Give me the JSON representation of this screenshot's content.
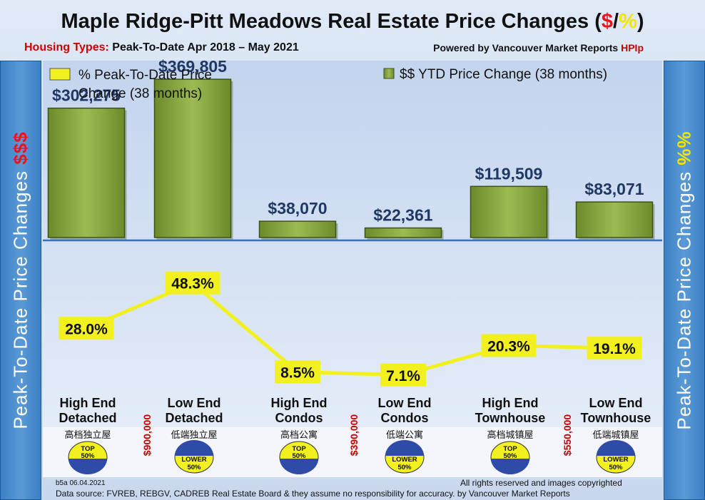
{
  "header": {
    "title_main": "Maple Ridge-Pitt Meadows Real Estate Price Changes (",
    "title_dollar": "$",
    "title_slash": "/",
    "title_pct": "%",
    "title_end": ")",
    "subtitle_label": "Housing Types:",
    "subtitle_value": "Peak-To-Date Apr 2018 – May 2021",
    "powered_by": "Powered by Vancouver Market Reports",
    "powered_hp": "HPIp"
  },
  "sidebar_left": {
    "text": "Peak-To-Date Price Changes",
    "accent": "$$$"
  },
  "sidebar_right": {
    "text": "Peak-To-Date  Price  Changes",
    "accent": "%%"
  },
  "legend": {
    "pct_line1": "% Peak-To-Date Price",
    "pct_line2": "Change (38 months)",
    "dollar": "$$ YTD Price Change (38 months)"
  },
  "categories": [
    {
      "en1": "High End",
      "en2": "Detached",
      "cn": "高档独立屋",
      "badge_top": "TOP",
      "badge_bottom": "50%"
    },
    {
      "en1": "Low End",
      "en2": "Detached",
      "cn": "低端独立屋",
      "badge_top": "LOWER",
      "badge_bottom": "50%"
    },
    {
      "en1": "High End",
      "en2": "Condos",
      "cn": "高档公寓",
      "badge_top": "TOP",
      "badge_bottom": "50%"
    },
    {
      "en1": "Low End",
      "en2": "Condos",
      "cn": "低端公寓",
      "badge_top": "LOWER",
      "badge_bottom": "50%"
    },
    {
      "en1": "High End",
      "en2": "Townhouse",
      "cn": "高档城镇屋",
      "badge_top": "TOP",
      "badge_bottom": "50%"
    },
    {
      "en1": "Low End",
      "en2": "Townhouse",
      "cn": "低端城镇屋",
      "badge_top": "LOWER",
      "badge_bottom": "50%"
    }
  ],
  "thresholds": [
    "$900,000",
    "$390,000",
    "$550,000"
  ],
  "chart_data": {
    "type": "bar",
    "categories": [
      "High End Detached",
      "Low End Detached",
      "High End Condos",
      "Low End Condos",
      "High End Townhouse",
      "Low End Townhouse"
    ],
    "series": [
      {
        "name": "$$ YTD Price Change (38 months)",
        "values": [
          302275,
          369805,
          38070,
          22361,
          119509,
          83071
        ],
        "labels": [
          "$302,275",
          "$369,805",
          "$38,070",
          "$22,361",
          "$119,509",
          "$83,071"
        ]
      },
      {
        "name": "% Peak-To-Date Price Change (38 months)",
        "type": "line",
        "values": [
          28.0,
          48.3,
          8.5,
          7.1,
          20.3,
          19.1
        ],
        "labels": [
          "28.0%",
          "48.3%",
          "8.5%",
          "7.1%",
          "20.3%",
          "19.1%"
        ]
      }
    ],
    "bar_ylim": [
      0,
      400000
    ],
    "line_ylim": [
      0,
      60
    ]
  },
  "colors": {
    "bar": "#8fab43",
    "line": "#f2f01e",
    "dollar_label": "#1f3864",
    "sidebar": "#3a80c4",
    "threshold": "#cc0000"
  },
  "footer": {
    "code": "b5a 06.04.2021",
    "rights": "All rights reserved and  images copyrighted",
    "source": "Data source: FVREB, REBGV, CADREB Real Estate Board & they assume no responsibility for accuracy. by Vancouver Market Reports"
  }
}
